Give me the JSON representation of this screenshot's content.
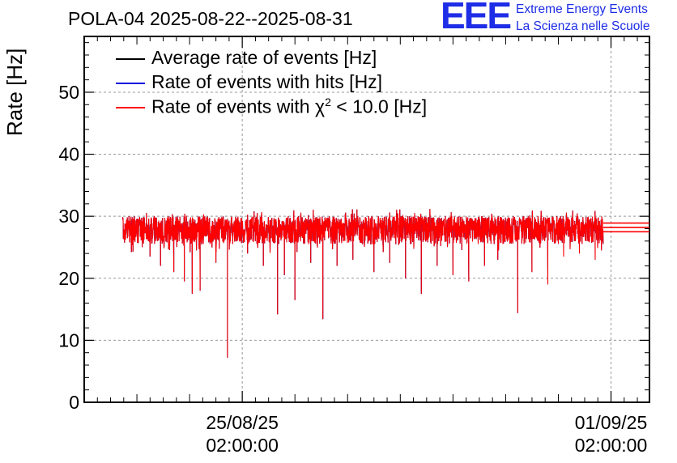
{
  "chart_data": {
    "type": "line",
    "title": "POLA-04 2025-08-22--2025-08-31",
    "ylabel": "Rate [Hz]",
    "xlabel": "",
    "ylim": [
      0,
      59
    ],
    "y_ticks": [
      0,
      10,
      20,
      30,
      40,
      50
    ],
    "x_ticks": [
      {
        "date": "25/08/25",
        "time": "02:00:00",
        "day": 3.0
      },
      {
        "date": "01/09/25",
        "time": "02:00:00",
        "day": 10.0
      }
    ],
    "xlim_days": [
      0,
      10.73
    ],
    "grid": true,
    "legend_position": "top-left",
    "series": [
      {
        "name": "Average rate of events [Hz]",
        "color": "#000000",
        "note": "overlapped by red series",
        "baseline": 28.2
      },
      {
        "name": "Rate of events with hits [Hz]",
        "color": "#0000dd",
        "note": "overlapped by red series",
        "baseline": 28.2
      },
      {
        "name": "Rate of events with χ² < 10.0 [Hz]",
        "color": "#ff0000",
        "data_start_day": 0.73,
        "data_end_day": 9.85,
        "baseline": 28.2,
        "band_upper": 30.0,
        "band_lower": 25.5,
        "dips": [
          {
            "day": 1.1,
            "value": 25.0
          },
          {
            "day": 1.25,
            "value": 23.5
          },
          {
            "day": 1.45,
            "value": 22.0
          },
          {
            "day": 1.7,
            "value": 21.0
          },
          {
            "day": 1.9,
            "value": 19.5
          },
          {
            "day": 2.05,
            "value": 17.5
          },
          {
            "day": 2.2,
            "value": 18.0
          },
          {
            "day": 2.5,
            "value": 22.5
          },
          {
            "day": 2.72,
            "value": 7.2
          },
          {
            "day": 3.1,
            "value": 24.0
          },
          {
            "day": 3.4,
            "value": 22.0
          },
          {
            "day": 3.67,
            "value": 14.2
          },
          {
            "day": 3.8,
            "value": 20.5
          },
          {
            "day": 4.0,
            "value": 16.5
          },
          {
            "day": 4.3,
            "value": 22.5
          },
          {
            "day": 4.53,
            "value": 13.4
          },
          {
            "day": 4.8,
            "value": 22.0
          },
          {
            "day": 5.1,
            "value": 23.0
          },
          {
            "day": 5.5,
            "value": 21.0
          },
          {
            "day": 5.8,
            "value": 22.5
          },
          {
            "day": 6.1,
            "value": 20.0
          },
          {
            "day": 6.4,
            "value": 17.5
          },
          {
            "day": 6.7,
            "value": 22.0
          },
          {
            "day": 7.0,
            "value": 20.5
          },
          {
            "day": 7.3,
            "value": 19.5
          },
          {
            "day": 7.6,
            "value": 22.0
          },
          {
            "day": 7.85,
            "value": 23.0
          },
          {
            "day": 8.23,
            "value": 14.4
          },
          {
            "day": 8.5,
            "value": 21.0
          },
          {
            "day": 8.8,
            "value": 19.0
          },
          {
            "day": 9.1,
            "value": 23.5
          },
          {
            "day": 9.4,
            "value": 24.0
          },
          {
            "day": 9.7,
            "value": 23.0
          }
        ],
        "flat_tail": {
          "start_day": 9.85,
          "end_day": 10.73,
          "values": [
            27.5,
            28.2,
            28.9
          ]
        }
      }
    ]
  },
  "logo": {
    "mark": "EEE",
    "line1": "Extreme Energy Events",
    "line2": "La Scienza nelle Scuole",
    "color": "#1e2de6"
  },
  "legend": [
    {
      "label": "Average rate of events [Hz]",
      "color": "#000000"
    },
    {
      "label": "Rate of events with hits [Hz]",
      "color": "#0000dd"
    },
    {
      "label_prefix": "Rate of events with ",
      "label_chi": "χ",
      "label_sup": "2",
      "label_suffix": " < 10.0 [Hz]",
      "color": "#ff0000"
    }
  ]
}
